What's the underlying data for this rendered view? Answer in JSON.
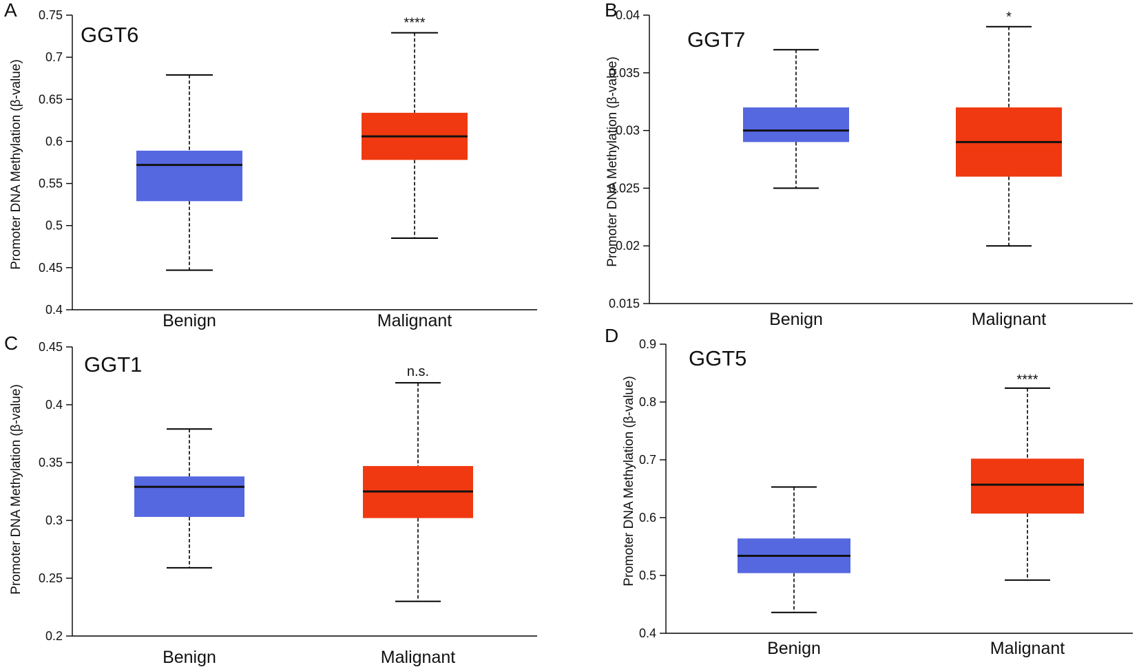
{
  "figure": {
    "colors": {
      "benign": "#5568e0",
      "malignant": "#f03910",
      "line": "#000000"
    }
  },
  "chart_data": [
    {
      "type": "box",
      "panel": "A",
      "title": "GGT6",
      "ylabel": "Promoter  DNA Methylation (β-value)",
      "ylim": [
        0.4,
        0.75
      ],
      "yticks": [
        0.4,
        0.45,
        0.5,
        0.55,
        0.6,
        0.65,
        0.7,
        0.75
      ],
      "yticklabels": [
        "0.4",
        "0.45",
        "0.5",
        "0.55",
        "0.6",
        "0.65",
        "0.7",
        "0.75"
      ],
      "categories": [
        "Benign",
        "Malignant"
      ],
      "boxes": [
        {
          "name": "Benign",
          "min": 0.447,
          "q1": 0.529,
          "median": 0.572,
          "q3": 0.589,
          "max": 0.679
        },
        {
          "name": "Malignant",
          "min": 0.485,
          "q1": 0.578,
          "median": 0.606,
          "q3": 0.634,
          "max": 0.729
        }
      ],
      "significance": "****"
    },
    {
      "type": "box",
      "panel": "B",
      "title": "GGT7",
      "ylabel": "Promoter  DNA Methylation (β-value)",
      "ylim": [
        0.015,
        0.04
      ],
      "yticks": [
        0.015,
        0.02,
        0.025,
        0.03,
        0.035,
        0.04
      ],
      "yticklabels": [
        "0.015",
        "0.02",
        "0.025",
        "0.03",
        "0.035",
        "0.04"
      ],
      "categories": [
        "Benign",
        "Malignant"
      ],
      "boxes": [
        {
          "name": "Benign",
          "min": 0.025,
          "q1": 0.029,
          "median": 0.03,
          "q3": 0.032,
          "max": 0.037
        },
        {
          "name": "Malignant",
          "min": 0.02,
          "q1": 0.026,
          "median": 0.029,
          "q3": 0.032,
          "max": 0.039
        }
      ],
      "significance": "*"
    },
    {
      "type": "box",
      "panel": "C",
      "title": "GGT1",
      "ylabel": "Promoter  DNA Methylation (β-value)",
      "ylim": [
        0.2,
        0.45
      ],
      "yticks": [
        0.2,
        0.25,
        0.3,
        0.35,
        0.4,
        0.45
      ],
      "yticklabels": [
        "0.2",
        "0.25",
        "0.3",
        "0.35",
        "0.4",
        "0.45"
      ],
      "categories": [
        "Benign",
        "Malignant"
      ],
      "boxes": [
        {
          "name": "Benign",
          "min": 0.259,
          "q1": 0.303,
          "median": 0.329,
          "q3": 0.338,
          "max": 0.379
        },
        {
          "name": "Malignant",
          "min": 0.23,
          "q1": 0.302,
          "median": 0.325,
          "q3": 0.347,
          "max": 0.419
        }
      ],
      "significance": "n.s."
    },
    {
      "type": "box",
      "panel": "D",
      "title": "GGT5",
      "ylabel": "Promoter  DNA Methylation (β-value)",
      "ylim": [
        0.4,
        0.9
      ],
      "yticks": [
        0.4,
        0.5,
        0.6,
        0.7,
        0.8,
        0.9
      ],
      "yticklabels": [
        "0.4",
        "0.5",
        "0.6",
        "0.7",
        "0.8",
        "0.9"
      ],
      "categories": [
        "Benign",
        "Malignant"
      ],
      "boxes": [
        {
          "name": "Benign",
          "min": 0.436,
          "q1": 0.504,
          "median": 0.534,
          "q3": 0.564,
          "max": 0.653
        },
        {
          "name": "Malignant",
          "min": 0.492,
          "q1": 0.607,
          "median": 0.657,
          "q3": 0.702,
          "max": 0.824
        }
      ],
      "significance": "****"
    }
  ]
}
